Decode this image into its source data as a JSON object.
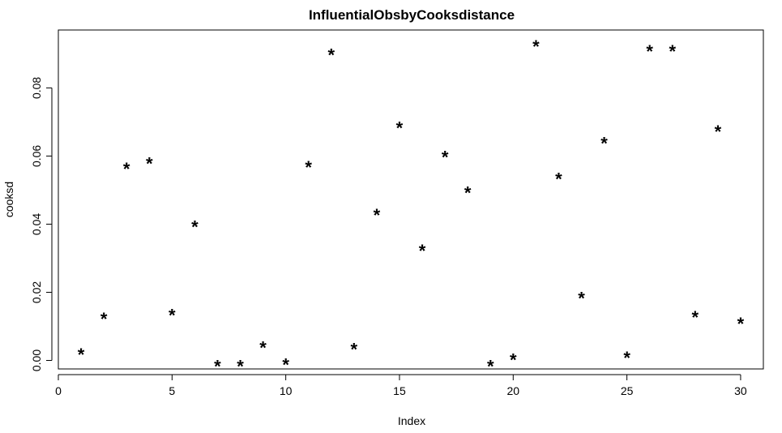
{
  "chart_data": {
    "type": "scatter",
    "title": "InfluentialObsbyCooksdistance",
    "xlabel": "Index",
    "ylabel": "cooksd",
    "xlim": [
      0,
      31
    ],
    "ylim": [
      -0.0025,
      0.097
    ],
    "xticks": [
      0,
      5,
      10,
      15,
      20,
      25,
      30
    ],
    "xtick_labels": [
      "0",
      "5",
      "10",
      "15",
      "20",
      "25",
      "30"
    ],
    "yticks": [
      0,
      0.02,
      0.04,
      0.06,
      0.08
    ],
    "ytick_labels": [
      "0.00",
      "0.02",
      "0.04",
      "0.06",
      "0.08"
    ],
    "marker": "*",
    "grid": false,
    "x": [
      1,
      2,
      3,
      4,
      5,
      6,
      7,
      8,
      9,
      10,
      11,
      12,
      13,
      14,
      15,
      16,
      17,
      18,
      19,
      20,
      21,
      22,
      23,
      24,
      25,
      26,
      27,
      28,
      29,
      30
    ],
    "y": [
      0.0025,
      0.013,
      0.057,
      0.0585,
      0.014,
      0.04,
      -0.001,
      -0.001,
      0.0045,
      -0.0005,
      0.0575,
      0.0905,
      0.004,
      0.0435,
      0.069,
      0.033,
      0.0605,
      0.05,
      -0.001,
      0.001,
      0.093,
      0.054,
      0.019,
      0.0645,
      0.0015,
      0.0915,
      0.0915,
      0.0135,
      0.068,
      0.0115
    ]
  }
}
